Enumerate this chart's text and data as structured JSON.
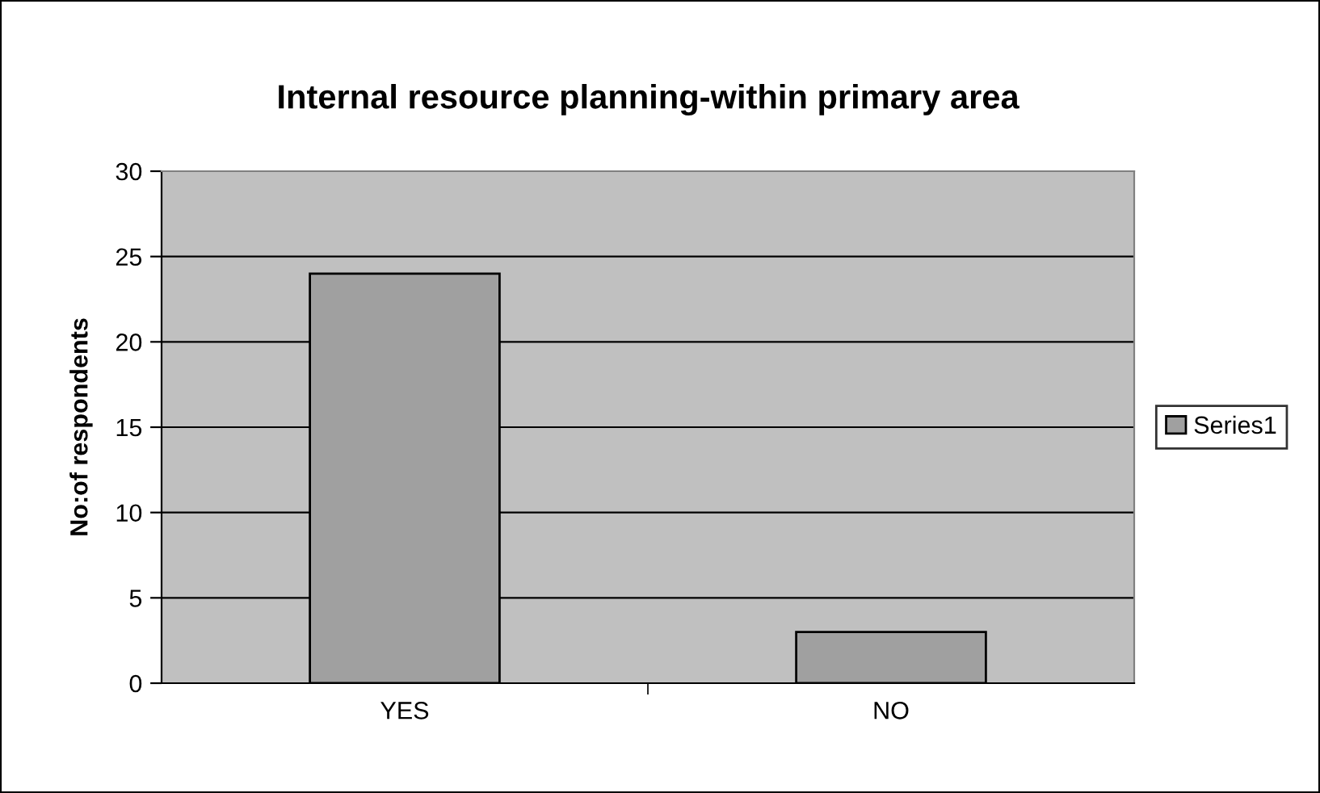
{
  "chart_data": {
    "type": "bar",
    "title": "Internal resource planning-within primary area",
    "ylabel": "No:of respondents",
    "categories": [
      "YES",
      "NO"
    ],
    "series": [
      {
        "name": "Series1",
        "color": "#a0a0a0",
        "values": [
          24,
          3
        ]
      }
    ],
    "ylim": [
      0,
      30
    ],
    "yticks": [
      0,
      5,
      10,
      15,
      20,
      25,
      30
    ],
    "grid": "y",
    "legend": "right"
  }
}
